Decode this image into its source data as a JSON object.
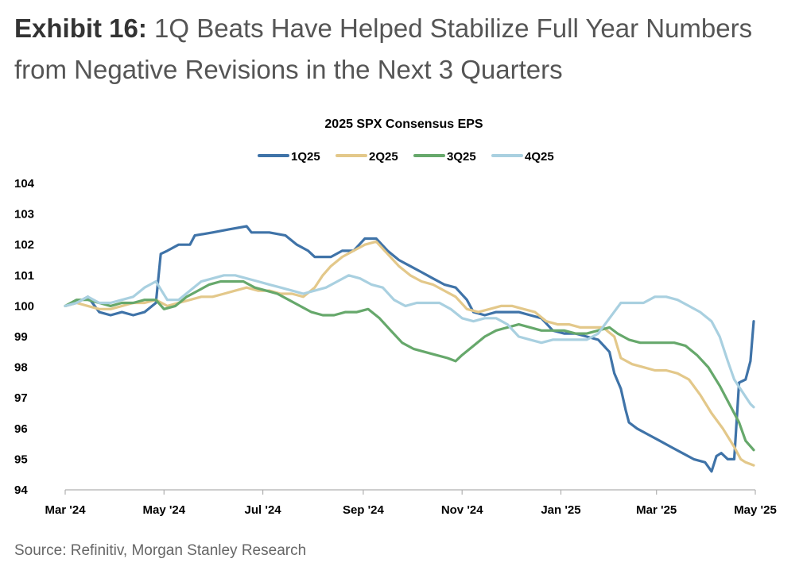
{
  "exhibit": {
    "label": "Exhibit 16:",
    "title": "1Q Beats Have Helped Stabilize Full Year Numbers from Negative Revisions in the Next 3 Quarters"
  },
  "source": "Source: Refinitiv, Morgan Stanley Research",
  "chart_data": {
    "type": "line",
    "title": "2025 SPX Consensus EPS",
    "xlabel": "",
    "ylabel": "",
    "xlim": [
      "2024-03-01",
      "2025-05-01"
    ],
    "ylim": [
      94,
      104
    ],
    "yticks": [
      94,
      95,
      96,
      97,
      98,
      99,
      100,
      101,
      102,
      103,
      104
    ],
    "xticks": [
      {
        "date": "2024-03-01",
        "label": "Mar '24"
      },
      {
        "date": "2024-05-01",
        "label": "May '24"
      },
      {
        "date": "2024-07-01",
        "label": "Jul '24"
      },
      {
        "date": "2024-09-01",
        "label": "Sep '24"
      },
      {
        "date": "2024-11-01",
        "label": "Nov '24"
      },
      {
        "date": "2025-01-01",
        "label": "Jan '25"
      },
      {
        "date": "2025-03-01",
        "label": "Mar '25"
      },
      {
        "date": "2025-05-01",
        "label": "May '25"
      }
    ],
    "grid": false,
    "legend_position": "top",
    "series": [
      {
        "name": "1Q25",
        "color": "#3f73a8",
        "points": [
          [
            "2024-03-01",
            100.0
          ],
          [
            "2024-03-08",
            100.1
          ],
          [
            "2024-03-15",
            100.3
          ],
          [
            "2024-03-22",
            99.8
          ],
          [
            "2024-03-29",
            99.7
          ],
          [
            "2024-04-05",
            99.8
          ],
          [
            "2024-04-12",
            99.7
          ],
          [
            "2024-04-19",
            99.8
          ],
          [
            "2024-04-26",
            100.1
          ],
          [
            "2024-04-29",
            101.7
          ],
          [
            "2024-05-03",
            101.8
          ],
          [
            "2024-05-10",
            102.0
          ],
          [
            "2024-05-17",
            102.0
          ],
          [
            "2024-05-20",
            102.3
          ],
          [
            "2024-05-31",
            102.4
          ],
          [
            "2024-06-10",
            102.5
          ],
          [
            "2024-06-21",
            102.6
          ],
          [
            "2024-06-24",
            102.4
          ],
          [
            "2024-07-05",
            102.4
          ],
          [
            "2024-07-15",
            102.3
          ],
          [
            "2024-07-22",
            102.0
          ],
          [
            "2024-07-29",
            101.8
          ],
          [
            "2024-08-02",
            101.6
          ],
          [
            "2024-08-12",
            101.6
          ],
          [
            "2024-08-19",
            101.8
          ],
          [
            "2024-08-26",
            101.8
          ],
          [
            "2024-09-02",
            102.2
          ],
          [
            "2024-09-09",
            102.2
          ],
          [
            "2024-09-16",
            101.8
          ],
          [
            "2024-09-23",
            101.5
          ],
          [
            "2024-09-30",
            101.3
          ],
          [
            "2024-10-07",
            101.1
          ],
          [
            "2024-10-14",
            100.9
          ],
          [
            "2024-10-21",
            100.7
          ],
          [
            "2024-10-28",
            100.6
          ],
          [
            "2024-11-04",
            100.2
          ],
          [
            "2024-11-08",
            99.8
          ],
          [
            "2024-11-15",
            99.7
          ],
          [
            "2024-11-22",
            99.8
          ],
          [
            "2024-11-29",
            99.8
          ],
          [
            "2024-12-06",
            99.8
          ],
          [
            "2024-12-13",
            99.7
          ],
          [
            "2024-12-20",
            99.6
          ],
          [
            "2024-12-27",
            99.2
          ],
          [
            "2025-01-03",
            99.1
          ],
          [
            "2025-01-10",
            99.1
          ],
          [
            "2025-01-17",
            99.0
          ],
          [
            "2025-01-24",
            98.9
          ],
          [
            "2025-01-31",
            98.5
          ],
          [
            "2025-02-03",
            97.8
          ],
          [
            "2025-02-07",
            97.3
          ],
          [
            "2025-02-10",
            96.6
          ],
          [
            "2025-02-12",
            96.2
          ],
          [
            "2025-02-17",
            96.0
          ],
          [
            "2025-02-24",
            95.8
          ],
          [
            "2025-03-03",
            95.6
          ],
          [
            "2025-03-10",
            95.4
          ],
          [
            "2025-03-17",
            95.2
          ],
          [
            "2025-03-24",
            95.0
          ],
          [
            "2025-03-31",
            94.9
          ],
          [
            "2025-04-04",
            94.6
          ],
          [
            "2025-04-07",
            95.1
          ],
          [
            "2025-04-10",
            95.2
          ],
          [
            "2025-04-14",
            95.0
          ],
          [
            "2025-04-18",
            95.0
          ],
          [
            "2025-04-21",
            97.5
          ],
          [
            "2025-04-25",
            97.6
          ],
          [
            "2025-04-28",
            98.2
          ],
          [
            "2025-04-30",
            99.5
          ]
        ]
      },
      {
        "name": "2Q25",
        "color": "#e3c88a",
        "points": [
          [
            "2024-03-01",
            100.0
          ],
          [
            "2024-03-08",
            100.1
          ],
          [
            "2024-03-15",
            100.0
          ],
          [
            "2024-03-22",
            99.9
          ],
          [
            "2024-03-29",
            99.9
          ],
          [
            "2024-04-05",
            100.0
          ],
          [
            "2024-04-12",
            100.1
          ],
          [
            "2024-04-19",
            100.1
          ],
          [
            "2024-04-26",
            100.2
          ],
          [
            "2024-05-03",
            100.0
          ],
          [
            "2024-05-10",
            100.1
          ],
          [
            "2024-05-17",
            100.2
          ],
          [
            "2024-05-24",
            100.3
          ],
          [
            "2024-05-31",
            100.3
          ],
          [
            "2024-06-07",
            100.4
          ],
          [
            "2024-06-14",
            100.5
          ],
          [
            "2024-06-21",
            100.6
          ],
          [
            "2024-06-28",
            100.5
          ],
          [
            "2024-07-05",
            100.5
          ],
          [
            "2024-07-12",
            100.4
          ],
          [
            "2024-07-19",
            100.4
          ],
          [
            "2024-07-26",
            100.3
          ],
          [
            "2024-08-02",
            100.6
          ],
          [
            "2024-08-07",
            101.0
          ],
          [
            "2024-08-12",
            101.3
          ],
          [
            "2024-08-19",
            101.6
          ],
          [
            "2024-08-26",
            101.8
          ],
          [
            "2024-09-02",
            102.0
          ],
          [
            "2024-09-09",
            102.1
          ],
          [
            "2024-09-16",
            101.7
          ],
          [
            "2024-09-23",
            101.3
          ],
          [
            "2024-09-30",
            101.0
          ],
          [
            "2024-10-07",
            100.8
          ],
          [
            "2024-10-14",
            100.7
          ],
          [
            "2024-10-21",
            100.5
          ],
          [
            "2024-10-28",
            100.3
          ],
          [
            "2024-11-04",
            99.9
          ],
          [
            "2024-11-11",
            99.8
          ],
          [
            "2024-11-18",
            99.9
          ],
          [
            "2024-11-25",
            100.0
          ],
          [
            "2024-12-02",
            100.0
          ],
          [
            "2024-12-09",
            99.9
          ],
          [
            "2024-12-16",
            99.8
          ],
          [
            "2024-12-23",
            99.5
          ],
          [
            "2024-12-30",
            99.4
          ],
          [
            "2025-01-06",
            99.4
          ],
          [
            "2025-01-13",
            99.3
          ],
          [
            "2025-01-20",
            99.3
          ],
          [
            "2025-01-27",
            99.3
          ],
          [
            "2025-02-03",
            99.0
          ],
          [
            "2025-02-07",
            98.3
          ],
          [
            "2025-02-14",
            98.1
          ],
          [
            "2025-02-21",
            98.0
          ],
          [
            "2025-02-28",
            97.9
          ],
          [
            "2025-03-07",
            97.9
          ],
          [
            "2025-03-14",
            97.8
          ],
          [
            "2025-03-21",
            97.6
          ],
          [
            "2025-03-28",
            97.1
          ],
          [
            "2025-04-04",
            96.5
          ],
          [
            "2025-04-11",
            96.0
          ],
          [
            "2025-04-18",
            95.4
          ],
          [
            "2025-04-22",
            95.0
          ],
          [
            "2025-04-25",
            94.9
          ],
          [
            "2025-04-30",
            94.8
          ]
        ]
      },
      {
        "name": "3Q25",
        "color": "#66a86b",
        "points": [
          [
            "2024-03-01",
            100.0
          ],
          [
            "2024-03-08",
            100.2
          ],
          [
            "2024-03-15",
            100.2
          ],
          [
            "2024-03-22",
            100.1
          ],
          [
            "2024-03-29",
            100.0
          ],
          [
            "2024-04-05",
            100.1
          ],
          [
            "2024-04-12",
            100.1
          ],
          [
            "2024-04-19",
            100.2
          ],
          [
            "2024-04-26",
            100.2
          ],
          [
            "2024-05-01",
            99.9
          ],
          [
            "2024-05-08",
            100.0
          ],
          [
            "2024-05-15",
            100.3
          ],
          [
            "2024-05-22",
            100.5
          ],
          [
            "2024-05-29",
            100.7
          ],
          [
            "2024-06-05",
            100.8
          ],
          [
            "2024-06-12",
            100.8
          ],
          [
            "2024-06-19",
            100.8
          ],
          [
            "2024-06-26",
            100.6
          ],
          [
            "2024-07-03",
            100.5
          ],
          [
            "2024-07-10",
            100.4
          ],
          [
            "2024-07-17",
            100.2
          ],
          [
            "2024-07-24",
            100.0
          ],
          [
            "2024-07-31",
            99.8
          ],
          [
            "2024-08-07",
            99.7
          ],
          [
            "2024-08-14",
            99.7
          ],
          [
            "2024-08-21",
            99.8
          ],
          [
            "2024-08-28",
            99.8
          ],
          [
            "2024-09-04",
            99.9
          ],
          [
            "2024-09-11",
            99.6
          ],
          [
            "2024-09-18",
            99.2
          ],
          [
            "2024-09-25",
            98.8
          ],
          [
            "2024-10-02",
            98.6
          ],
          [
            "2024-10-09",
            98.5
          ],
          [
            "2024-10-16",
            98.4
          ],
          [
            "2024-10-23",
            98.3
          ],
          [
            "2024-10-28",
            98.2
          ],
          [
            "2024-11-01",
            98.4
          ],
          [
            "2024-11-08",
            98.7
          ],
          [
            "2024-11-15",
            99.0
          ],
          [
            "2024-11-22",
            99.2
          ],
          [
            "2024-11-29",
            99.3
          ],
          [
            "2024-12-06",
            99.4
          ],
          [
            "2024-12-13",
            99.3
          ],
          [
            "2024-12-20",
            99.2
          ],
          [
            "2024-12-27",
            99.2
          ],
          [
            "2025-01-03",
            99.2
          ],
          [
            "2025-01-10",
            99.1
          ],
          [
            "2025-01-17",
            99.1
          ],
          [
            "2025-01-24",
            99.2
          ],
          [
            "2025-01-31",
            99.3
          ],
          [
            "2025-02-05",
            99.1
          ],
          [
            "2025-02-12",
            98.9
          ],
          [
            "2025-02-19",
            98.8
          ],
          [
            "2025-02-26",
            98.8
          ],
          [
            "2025-03-05",
            98.8
          ],
          [
            "2025-03-12",
            98.8
          ],
          [
            "2025-03-19",
            98.7
          ],
          [
            "2025-03-26",
            98.4
          ],
          [
            "2025-04-02",
            98.0
          ],
          [
            "2025-04-09",
            97.4
          ],
          [
            "2025-04-16",
            96.7
          ],
          [
            "2025-04-21",
            96.2
          ],
          [
            "2025-04-25",
            95.6
          ],
          [
            "2025-04-30",
            95.3
          ]
        ]
      },
      {
        "name": "4Q25",
        "color": "#a9d0e0",
        "points": [
          [
            "2024-03-01",
            100.0
          ],
          [
            "2024-03-08",
            100.1
          ],
          [
            "2024-03-15",
            100.3
          ],
          [
            "2024-03-22",
            100.1
          ],
          [
            "2024-03-29",
            100.1
          ],
          [
            "2024-04-05",
            100.2
          ],
          [
            "2024-04-12",
            100.3
          ],
          [
            "2024-04-19",
            100.6
          ],
          [
            "2024-04-26",
            100.8
          ],
          [
            "2024-05-03",
            100.2
          ],
          [
            "2024-05-10",
            100.2
          ],
          [
            "2024-05-17",
            100.5
          ],
          [
            "2024-05-24",
            100.8
          ],
          [
            "2024-05-31",
            100.9
          ],
          [
            "2024-06-07",
            101.0
          ],
          [
            "2024-06-14",
            101.0
          ],
          [
            "2024-06-21",
            100.9
          ],
          [
            "2024-06-28",
            100.8
          ],
          [
            "2024-07-05",
            100.7
          ],
          [
            "2024-07-12",
            100.6
          ],
          [
            "2024-07-19",
            100.5
          ],
          [
            "2024-07-26",
            100.4
          ],
          [
            "2024-08-02",
            100.5
          ],
          [
            "2024-08-09",
            100.6
          ],
          [
            "2024-08-16",
            100.8
          ],
          [
            "2024-08-23",
            101.0
          ],
          [
            "2024-08-30",
            100.9
          ],
          [
            "2024-09-06",
            100.7
          ],
          [
            "2024-09-13",
            100.6
          ],
          [
            "2024-09-20",
            100.2
          ],
          [
            "2024-09-27",
            100.0
          ],
          [
            "2024-10-04",
            100.1
          ],
          [
            "2024-10-11",
            100.1
          ],
          [
            "2024-10-18",
            100.1
          ],
          [
            "2024-10-25",
            99.9
          ],
          [
            "2024-11-01",
            99.6
          ],
          [
            "2024-11-08",
            99.5
          ],
          [
            "2024-11-15",
            99.6
          ],
          [
            "2024-11-22",
            99.6
          ],
          [
            "2024-11-29",
            99.4
          ],
          [
            "2024-12-06",
            99.0
          ],
          [
            "2024-12-13",
            98.9
          ],
          [
            "2024-12-20",
            98.8
          ],
          [
            "2024-12-27",
            98.9
          ],
          [
            "2025-01-03",
            98.9
          ],
          [
            "2025-01-10",
            98.9
          ],
          [
            "2025-01-17",
            98.9
          ],
          [
            "2025-01-24",
            99.1
          ],
          [
            "2025-01-31",
            99.6
          ],
          [
            "2025-02-07",
            100.1
          ],
          [
            "2025-02-14",
            100.1
          ],
          [
            "2025-02-21",
            100.1
          ],
          [
            "2025-02-28",
            100.3
          ],
          [
            "2025-03-07",
            100.3
          ],
          [
            "2025-03-14",
            100.2
          ],
          [
            "2025-03-21",
            100.0
          ],
          [
            "2025-03-28",
            99.8
          ],
          [
            "2025-04-04",
            99.5
          ],
          [
            "2025-04-09",
            99.0
          ],
          [
            "2025-04-14",
            98.2
          ],
          [
            "2025-04-18",
            97.6
          ],
          [
            "2025-04-23",
            97.2
          ],
          [
            "2025-04-28",
            96.8
          ],
          [
            "2025-04-30",
            96.7
          ]
        ]
      }
    ]
  }
}
